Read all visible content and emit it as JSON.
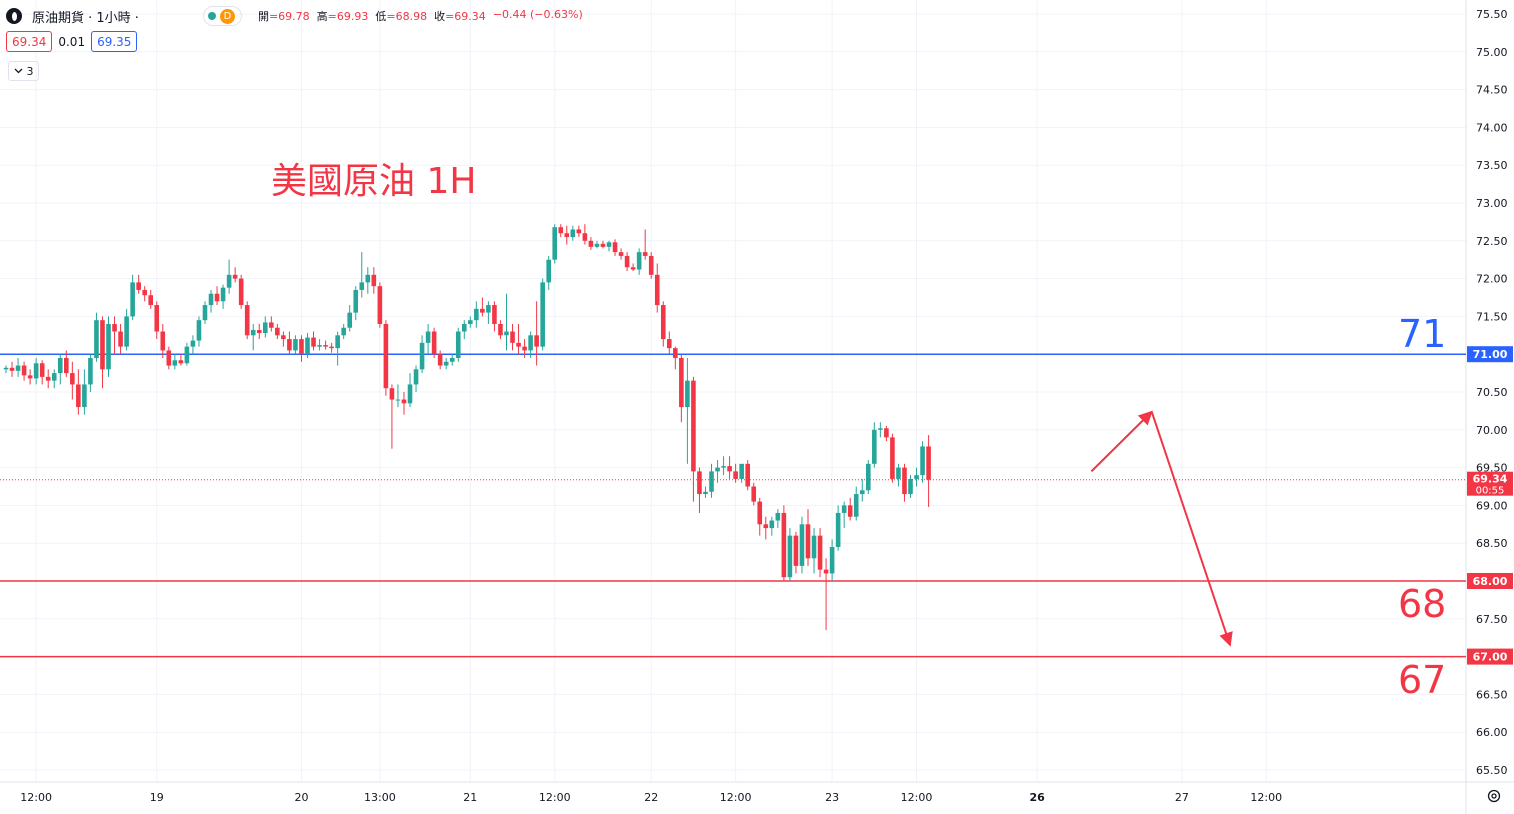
{
  "header": {
    "symbol": "原油期貨 · 1小時 ·",
    "data_badge": "D",
    "ohlc": [
      {
        "k": "開",
        "v": "=69.78"
      },
      {
        "k": "高",
        "v": "=69.93"
      },
      {
        "k": "低",
        "v": "=68.98"
      },
      {
        "k": "收",
        "v": "=69.34"
      },
      {
        "k": "",
        "v": "−0.44 (−0.63%)"
      }
    ]
  },
  "trade": {
    "sell": "69.34",
    "spread": "0.01",
    "buy": "69.35"
  },
  "indicators_toggle": {
    "count": "3"
  },
  "annotations": {
    "title": "美國原油 1H",
    "level_71": "71",
    "level_68": "68",
    "level_67": "67"
  },
  "colors": {
    "up": "#26a69a",
    "down": "#f23645",
    "blue": "#2962ff",
    "red": "#f23645"
  },
  "chart_data": {
    "type": "candlestick",
    "y_ticks": [
      "75.50",
      "75.00",
      "74.50",
      "74.00",
      "73.50",
      "73.00",
      "72.50",
      "72.00",
      "71.50",
      "71.00",
      "70.50",
      "70.00",
      "69.50",
      "69.00",
      "68.50",
      "68.00",
      "67.50",
      "67.00",
      "66.50",
      "66.00",
      "65.50"
    ],
    "ylim": [
      65.3,
      75.7
    ],
    "x_ticks": [
      {
        "label": "12:00",
        "i": 5,
        "bold": false
      },
      {
        "label": "19",
        "i": 25,
        "bold": false
      },
      {
        "label": "20",
        "i": 49,
        "bold": false
      },
      {
        "label": "13:00",
        "i": 62,
        "bold": false
      },
      {
        "label": "21",
        "i": 77,
        "bold": false
      },
      {
        "label": "12:00",
        "i": 91,
        "bold": false
      },
      {
        "label": "22",
        "i": 107,
        "bold": false
      },
      {
        "label": "12:00",
        "i": 121,
        "bold": false
      },
      {
        "label": "23",
        "i": 137,
        "bold": false
      },
      {
        "label": "12:00",
        "i": 151,
        "bold": false
      },
      {
        "label": "26",
        "i": 171,
        "bold": true
      },
      {
        "label": "27",
        "i": 195,
        "bold": false
      },
      {
        "label": "12:00",
        "i": 209,
        "bold": false
      }
    ],
    "horizontal_lines": [
      {
        "price": 71.0,
        "label": "71.00",
        "color": "#2962ff"
      },
      {
        "price": 68.0,
        "label": "68.00",
        "color": "#f23645"
      },
      {
        "price": 67.0,
        "label": "67.00",
        "color": "#f23645"
      }
    ],
    "last_price": {
      "price": 69.34,
      "label": "69.34",
      "countdown": "00:55"
    },
    "projection": [
      {
        "i": 180,
        "p": 69.45
      },
      {
        "i": 190,
        "p": 70.24
      },
      {
        "i": 203,
        "p": 67.15
      }
    ],
    "candles": [
      [
        70.8,
        70.85,
        70.75,
        70.82
      ],
      [
        70.82,
        70.9,
        70.7,
        70.78
      ],
      [
        70.78,
        70.95,
        70.7,
        70.85
      ],
      [
        70.85,
        70.9,
        70.65,
        70.72
      ],
      [
        70.72,
        70.8,
        70.6,
        70.68
      ],
      [
        70.68,
        70.95,
        70.6,
        70.88
      ],
      [
        70.88,
        70.92,
        70.6,
        70.7
      ],
      [
        70.7,
        70.8,
        70.55,
        70.65
      ],
      [
        70.65,
        70.8,
        70.55,
        70.75
      ],
      [
        70.75,
        71.0,
        70.6,
        70.95
      ],
      [
        70.95,
        71.05,
        70.7,
        70.75
      ],
      [
        70.75,
        70.9,
        70.4,
        70.6
      ],
      [
        70.6,
        70.8,
        70.2,
        70.3
      ],
      [
        70.3,
        70.8,
        70.2,
        70.6
      ],
      [
        70.6,
        71.0,
        70.5,
        70.95
      ],
      [
        70.95,
        71.55,
        70.9,
        71.45
      ],
      [
        71.45,
        71.5,
        70.55,
        70.8
      ],
      [
        70.8,
        71.5,
        70.7,
        71.4
      ],
      [
        71.4,
        71.5,
        71.0,
        71.3
      ],
      [
        71.3,
        71.4,
        71.0,
        71.1
      ],
      [
        71.1,
        71.6,
        71.05,
        71.5
      ],
      [
        71.5,
        72.05,
        71.45,
        71.95
      ],
      [
        71.95,
        72.05,
        71.8,
        71.85
      ],
      [
        71.85,
        71.9,
        71.7,
        71.78
      ],
      [
        71.78,
        71.85,
        71.6,
        71.65
      ],
      [
        71.65,
        71.7,
        71.2,
        71.3
      ],
      [
        71.3,
        71.4,
        70.95,
        71.05
      ],
      [
        71.05,
        71.1,
        70.8,
        70.85
      ],
      [
        70.85,
        71.0,
        70.8,
        70.92
      ],
      [
        70.92,
        71.0,
        70.85,
        70.88
      ],
      [
        70.88,
        71.15,
        70.85,
        71.1
      ],
      [
        71.1,
        71.25,
        71.0,
        71.18
      ],
      [
        71.18,
        71.5,
        71.1,
        71.45
      ],
      [
        71.45,
        71.7,
        71.4,
        71.65
      ],
      [
        71.65,
        71.85,
        71.55,
        71.8
      ],
      [
        71.8,
        71.9,
        71.65,
        71.7
      ],
      [
        71.7,
        71.92,
        71.6,
        71.88
      ],
      [
        71.88,
        72.25,
        71.8,
        72.05
      ],
      [
        72.05,
        72.15,
        71.95,
        72.0
      ],
      [
        72.0,
        72.05,
        71.6,
        71.65
      ],
      [
        71.65,
        71.7,
        71.2,
        71.25
      ],
      [
        71.25,
        71.4,
        71.05,
        71.32
      ],
      [
        71.32,
        71.4,
        71.2,
        71.28
      ],
      [
        71.28,
        71.5,
        71.22,
        71.42
      ],
      [
        71.42,
        71.5,
        71.3,
        71.35
      ],
      [
        71.35,
        71.4,
        71.2,
        71.25
      ],
      [
        71.25,
        71.3,
        71.1,
        71.2
      ],
      [
        71.2,
        71.3,
        71.0,
        71.05
      ],
      [
        71.05,
        71.25,
        71.0,
        71.2
      ],
      [
        71.2,
        71.25,
        70.9,
        71.0
      ],
      [
        71.0,
        71.28,
        70.95,
        71.22
      ],
      [
        71.22,
        71.3,
        71.05,
        71.1
      ],
      [
        71.1,
        71.2,
        71.05,
        71.12
      ],
      [
        71.12,
        71.18,
        71.06,
        71.1
      ],
      [
        71.1,
        71.15,
        71.02,
        71.08
      ],
      [
        71.08,
        71.3,
        70.85,
        71.25
      ],
      [
        71.25,
        71.4,
        71.2,
        71.35
      ],
      [
        71.35,
        71.65,
        71.3,
        71.55
      ],
      [
        71.55,
        71.9,
        71.45,
        71.85
      ],
      [
        71.85,
        72.35,
        71.75,
        71.95
      ],
      [
        71.95,
        72.15,
        71.8,
        72.05
      ],
      [
        72.05,
        72.15,
        71.8,
        71.9
      ],
      [
        71.9,
        71.95,
        71.35,
        71.4
      ],
      [
        71.4,
        71.45,
        70.45,
        70.55
      ],
      [
        70.55,
        70.6,
        69.75,
        70.4
      ],
      [
        70.4,
        70.6,
        70.3,
        70.4
      ],
      [
        70.4,
        70.5,
        70.2,
        70.35
      ],
      [
        70.35,
        70.75,
        70.3,
        70.6
      ],
      [
        70.6,
        70.85,
        70.5,
        70.8
      ],
      [
        70.8,
        71.25,
        70.75,
        71.15
      ],
      [
        71.15,
        71.4,
        71.0,
        71.3
      ],
      [
        71.3,
        71.35,
        70.95,
        71.0
      ],
      [
        71.0,
        71.05,
        70.8,
        70.85
      ],
      [
        70.85,
        70.95,
        70.8,
        70.9
      ],
      [
        70.9,
        71.0,
        70.85,
        70.95
      ],
      [
        70.95,
        71.35,
        70.9,
        71.3
      ],
      [
        71.3,
        71.45,
        71.2,
        71.4
      ],
      [
        71.4,
        71.5,
        71.35,
        71.45
      ],
      [
        71.45,
        71.7,
        71.35,
        71.6
      ],
      [
        71.6,
        71.75,
        71.5,
        71.55
      ],
      [
        71.55,
        71.7,
        71.4,
        71.65
      ],
      [
        71.65,
        71.7,
        71.3,
        71.4
      ],
      [
        71.4,
        71.45,
        71.2,
        71.25
      ],
      [
        71.25,
        71.8,
        71.05,
        71.3
      ],
      [
        71.3,
        71.4,
        71.05,
        71.15
      ],
      [
        71.15,
        71.4,
        71.0,
        71.1
      ],
      [
        71.1,
        71.2,
        70.95,
        71.05
      ],
      [
        71.05,
        71.3,
        70.95,
        71.25
      ],
      [
        71.25,
        71.7,
        70.85,
        71.1
      ],
      [
        71.1,
        72.0,
        71.05,
        71.95
      ],
      [
        71.95,
        72.3,
        71.85,
        72.25
      ],
      [
        72.25,
        72.72,
        72.2,
        72.68
      ],
      [
        72.68,
        72.72,
        72.55,
        72.6
      ],
      [
        72.6,
        72.7,
        72.45,
        72.55
      ],
      [
        72.55,
        72.7,
        72.5,
        72.65
      ],
      [
        72.65,
        72.7,
        72.55,
        72.6
      ],
      [
        72.6,
        72.72,
        72.45,
        72.5
      ],
      [
        72.5,
        72.55,
        72.38,
        72.42
      ],
      [
        72.42,
        72.5,
        72.4,
        72.46
      ],
      [
        72.46,
        72.5,
        72.4,
        72.42
      ],
      [
        72.42,
        72.5,
        72.36,
        72.48
      ],
      [
        72.48,
        72.52,
        72.3,
        72.35
      ],
      [
        72.35,
        72.4,
        72.25,
        72.3
      ],
      [
        72.3,
        72.35,
        72.1,
        72.15
      ],
      [
        72.15,
        72.2,
        72.1,
        72.12
      ],
      [
        72.12,
        72.4,
        72.05,
        72.35
      ],
      [
        72.35,
        72.65,
        72.25,
        72.3
      ],
      [
        72.3,
        72.35,
        72.0,
        72.05
      ],
      [
        72.05,
        72.2,
        71.55,
        71.65
      ],
      [
        71.65,
        71.7,
        71.1,
        71.2
      ],
      [
        71.2,
        71.3,
        71.0,
        71.08
      ],
      [
        71.08,
        71.1,
        70.8,
        70.95
      ],
      [
        70.95,
        71.0,
        70.1,
        70.3
      ],
      [
        70.3,
        70.95,
        69.55,
        70.65
      ],
      [
        70.65,
        70.7,
        69.05,
        69.45
      ],
      [
        69.45,
        69.5,
        68.9,
        69.15
      ],
      [
        69.15,
        69.25,
        69.1,
        69.18
      ],
      [
        69.18,
        69.55,
        69.1,
        69.45
      ],
      [
        69.45,
        69.6,
        69.3,
        69.5
      ],
      [
        69.5,
        69.65,
        69.4,
        69.52
      ],
      [
        69.52,
        69.65,
        69.35,
        69.45
      ],
      [
        69.45,
        69.55,
        69.3,
        69.35
      ],
      [
        69.35,
        69.5,
        69.3,
        69.55
      ],
      [
        69.55,
        69.6,
        69.2,
        69.25
      ],
      [
        69.25,
        69.3,
        69.0,
        69.05
      ],
      [
        69.05,
        69.1,
        68.6,
        68.75
      ],
      [
        68.75,
        68.85,
        68.55,
        68.7
      ],
      [
        68.7,
        68.85,
        68.6,
        68.8
      ],
      [
        68.8,
        68.95,
        68.7,
        68.9
      ],
      [
        68.9,
        69.0,
        68.0,
        68.05
      ],
      [
        68.05,
        68.7,
        68.0,
        68.6
      ],
      [
        68.6,
        68.65,
        68.1,
        68.2
      ],
      [
        68.2,
        68.85,
        68.1,
        68.75
      ],
      [
        68.75,
        68.95,
        68.2,
        68.3
      ],
      [
        68.3,
        68.7,
        68.1,
        68.6
      ],
      [
        68.6,
        68.7,
        68.05,
        68.15
      ],
      [
        68.15,
        68.3,
        67.35,
        68.1
      ],
      [
        68.1,
        68.55,
        68.0,
        68.45
      ],
      [
        68.45,
        69.0,
        68.4,
        68.9
      ],
      [
        68.9,
        69.05,
        68.7,
        69.0
      ],
      [
        69.0,
        69.1,
        68.8,
        68.85
      ],
      [
        68.85,
        69.25,
        68.8,
        69.15
      ],
      [
        69.15,
        69.35,
        69.05,
        69.2
      ],
      [
        69.2,
        69.6,
        69.15,
        69.55
      ],
      [
        69.55,
        70.1,
        69.5,
        70.0
      ],
      [
        70.0,
        70.1,
        69.9,
        70.02
      ],
      [
        70.02,
        70.05,
        69.85,
        69.9
      ],
      [
        69.9,
        69.95,
        69.3,
        69.35
      ],
      [
        69.35,
        69.55,
        69.25,
        69.5
      ],
      [
        69.5,
        69.55,
        69.05,
        69.15
      ],
      [
        69.15,
        69.4,
        69.1,
        69.35
      ],
      [
        69.35,
        69.5,
        69.25,
        69.4
      ],
      [
        69.4,
        69.85,
        69.3,
        69.78
      ],
      [
        69.78,
        69.93,
        68.98,
        69.34
      ]
    ]
  }
}
